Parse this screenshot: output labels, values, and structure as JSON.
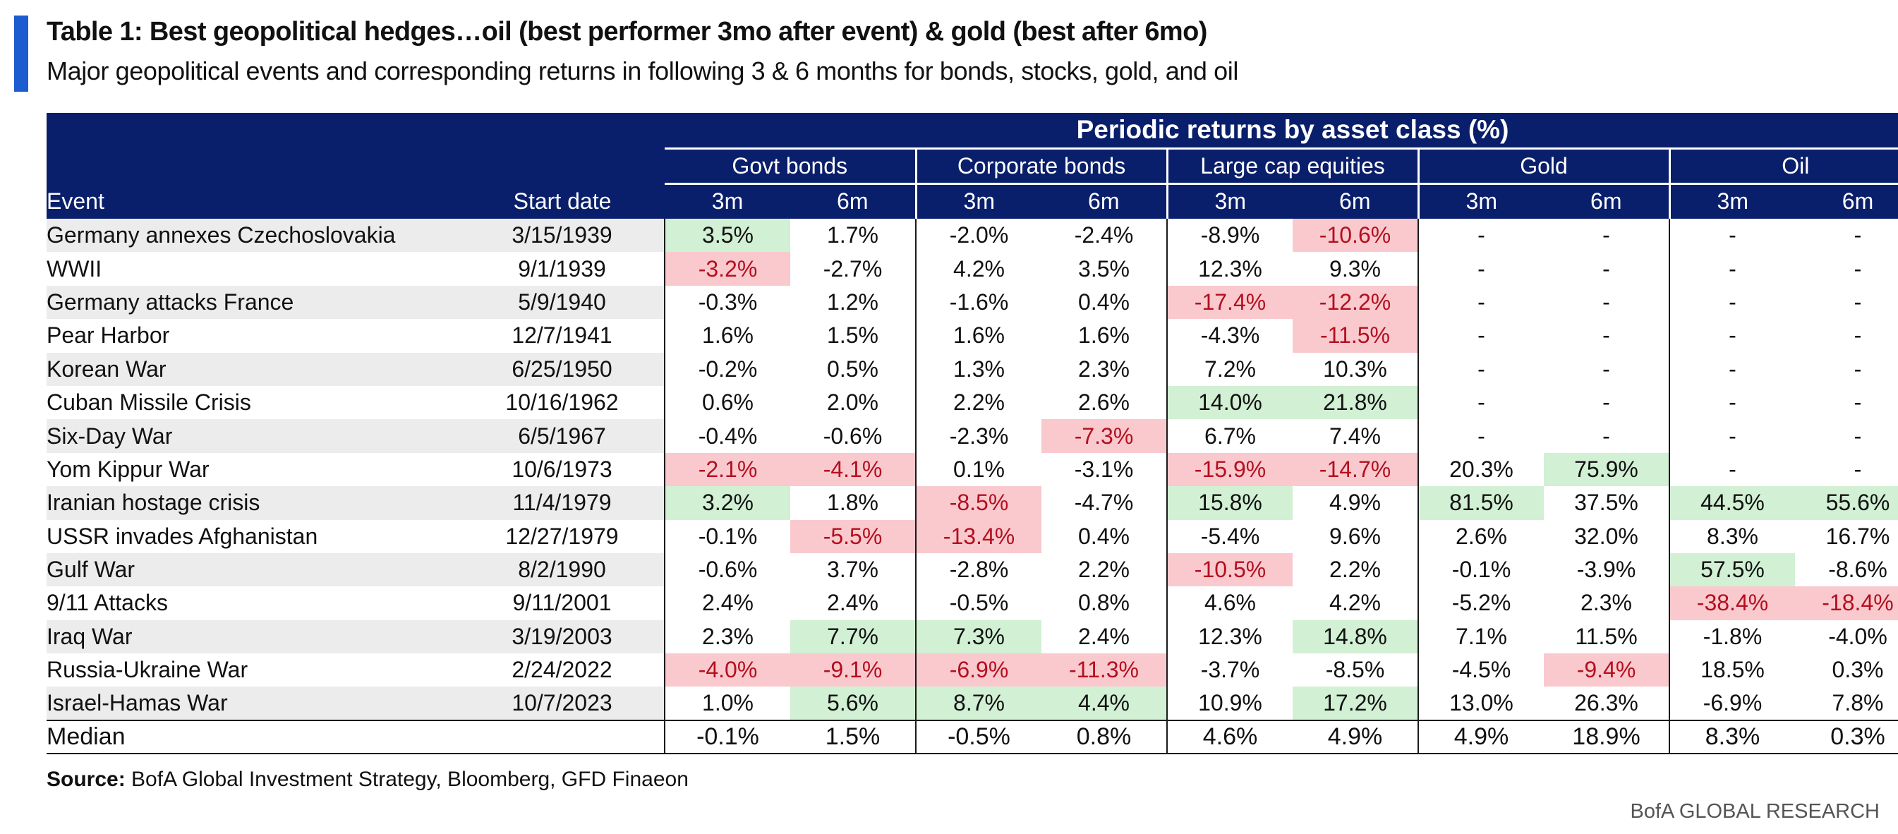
{
  "title": "Table 1: Best geopolitical hedges…oil (best performer 3mo after event) & gold (best after 6mo)",
  "subtitle": "Major geopolitical events and corresponding returns in following 3 & 6 months for bonds, stocks, gold, and oil",
  "source_label": "Source:",
  "source_text": "BofA Global Investment Strategy, Bloomberg, GFD Finaeon",
  "brand": "BofA GLOBAL RESEARCH",
  "colors": {
    "header_bg": "#0a1f6b",
    "accent": "#1d5bd1",
    "positive_bg": "#d2f0d4",
    "negative_bg": "#f9c9ce",
    "negative_text": "#b40f1e"
  },
  "chart_data": {
    "type": "table",
    "super_header": "Periodic returns by asset class (%)",
    "event_header": "Event",
    "date_header": "Start date",
    "groups": [
      "Govt bonds",
      "Corporate bonds",
      "Large cap equities",
      "Gold",
      "Oil"
    ],
    "periods": [
      "3m",
      "6m"
    ],
    "rows": [
      {
        "event": "Germany annexes Czechoslovakia",
        "date": "3/15/1939",
        "values": [
          "3.5%",
          "1.7%",
          "-2.0%",
          "-2.4%",
          "-8.9%",
          "-10.6%",
          "-",
          "-",
          "-",
          "-"
        ],
        "hl": [
          "pos",
          "",
          "",
          "",
          "",
          "neg",
          "",
          "",
          "",
          ""
        ]
      },
      {
        "event": "WWII",
        "date": "9/1/1939",
        "values": [
          "-3.2%",
          "-2.7%",
          "4.2%",
          "3.5%",
          "12.3%",
          "9.3%",
          "-",
          "-",
          "-",
          "-"
        ],
        "hl": [
          "neg",
          "",
          "",
          "",
          "",
          "",
          "",
          "",
          "",
          ""
        ]
      },
      {
        "event": "Germany attacks France",
        "date": "5/9/1940",
        "values": [
          "-0.3%",
          "1.2%",
          "-1.6%",
          "0.4%",
          "-17.4%",
          "-12.2%",
          "-",
          "-",
          "-",
          "-"
        ],
        "hl": [
          "",
          "",
          "",
          "",
          "neg",
          "neg",
          "",
          "",
          "",
          ""
        ]
      },
      {
        "event": "Pear Harbor",
        "date": "12/7/1941",
        "values": [
          "1.6%",
          "1.5%",
          "1.6%",
          "1.6%",
          "-4.3%",
          "-11.5%",
          "-",
          "-",
          "-",
          "-"
        ],
        "hl": [
          "",
          "",
          "",
          "",
          "",
          "neg",
          "",
          "",
          "",
          ""
        ]
      },
      {
        "event": "Korean War",
        "date": "6/25/1950",
        "values": [
          "-0.2%",
          "0.5%",
          "1.3%",
          "2.3%",
          "7.2%",
          "10.3%",
          "-",
          "-",
          "-",
          "-"
        ],
        "hl": [
          "",
          "",
          "",
          "",
          "",
          "",
          "",
          "",
          "",
          ""
        ]
      },
      {
        "event": "Cuban Missile Crisis",
        "date": "10/16/1962",
        "values": [
          "0.6%",
          "2.0%",
          "2.2%",
          "2.6%",
          "14.0%",
          "21.8%",
          "-",
          "-",
          "-",
          "-"
        ],
        "hl": [
          "",
          "",
          "",
          "",
          "pos",
          "pos",
          "",
          "",
          "",
          ""
        ]
      },
      {
        "event": "Six-Day War",
        "date": "6/5/1967",
        "values": [
          "-0.4%",
          "-0.6%",
          "-2.3%",
          "-7.3%",
          "6.7%",
          "7.4%",
          "-",
          "-",
          "-",
          "-"
        ],
        "hl": [
          "",
          "",
          "",
          "neg",
          "",
          "",
          "",
          "",
          "",
          ""
        ]
      },
      {
        "event": "Yom Kippur War",
        "date": "10/6/1973",
        "values": [
          "-2.1%",
          "-4.1%",
          "0.1%",
          "-3.1%",
          "-15.9%",
          "-14.7%",
          "20.3%",
          "75.9%",
          "-",
          "-"
        ],
        "hl": [
          "neg",
          "neg",
          "",
          "",
          "neg",
          "neg",
          "",
          "pos",
          "",
          ""
        ]
      },
      {
        "event": "Iranian hostage crisis",
        "date": "11/4/1979",
        "values": [
          "3.2%",
          "1.8%",
          "-8.5%",
          "-4.7%",
          "15.8%",
          "4.9%",
          "81.5%",
          "37.5%",
          "44.5%",
          "55.6%"
        ],
        "hl": [
          "pos",
          "",
          "neg",
          "",
          "pos",
          "",
          "pos",
          "",
          "pos",
          "pos"
        ]
      },
      {
        "event": "USSR invades Afghanistan",
        "date": "12/27/1979",
        "values": [
          "-0.1%",
          "-5.5%",
          "-13.4%",
          "0.4%",
          "-5.4%",
          "9.6%",
          "2.6%",
          "32.0%",
          "8.3%",
          "16.7%"
        ],
        "hl": [
          "",
          "neg",
          "neg",
          "",
          "",
          "",
          "",
          "",
          "",
          ""
        ]
      },
      {
        "event": "Gulf War",
        "date": "8/2/1990",
        "values": [
          "-0.6%",
          "3.7%",
          "-2.8%",
          "2.2%",
          "-10.5%",
          "2.2%",
          "-0.1%",
          "-3.9%",
          "57.5%",
          "-8.6%"
        ],
        "hl": [
          "",
          "",
          "",
          "",
          "neg",
          "",
          "",
          "",
          "pos",
          ""
        ]
      },
      {
        "event": "9/11 Attacks",
        "date": "9/11/2001",
        "values": [
          "2.4%",
          "2.4%",
          "-0.5%",
          "0.8%",
          "4.6%",
          "4.2%",
          "-5.2%",
          "2.3%",
          "-38.4%",
          "-18.4%"
        ],
        "hl": [
          "",
          "",
          "",
          "",
          "",
          "",
          "",
          "",
          "neg",
          "neg"
        ]
      },
      {
        "event": "Iraq War",
        "date": "3/19/2003",
        "values": [
          "2.3%",
          "7.7%",
          "7.3%",
          "2.4%",
          "12.3%",
          "14.8%",
          "7.1%",
          "11.5%",
          "-1.8%",
          "-4.0%"
        ],
        "hl": [
          "",
          "pos",
          "pos",
          "",
          "",
          "pos",
          "",
          "",
          "",
          ""
        ]
      },
      {
        "event": "Russia-Ukraine War",
        "date": "2/24/2022",
        "values": [
          "-4.0%",
          "-9.1%",
          "-6.9%",
          "-11.3%",
          "-3.7%",
          "-8.5%",
          "-4.5%",
          "-9.4%",
          "18.5%",
          "0.3%"
        ],
        "hl": [
          "neg",
          "neg",
          "neg",
          "neg",
          "",
          "",
          "",
          "neg",
          "",
          ""
        ]
      },
      {
        "event": "Israel-Hamas War",
        "date": "10/7/2023",
        "values": [
          "1.0%",
          "5.6%",
          "8.7%",
          "4.4%",
          "10.9%",
          "17.2%",
          "13.0%",
          "26.3%",
          "-6.9%",
          "7.8%"
        ],
        "hl": [
          "",
          "pos",
          "pos",
          "pos",
          "",
          "pos",
          "",
          "",
          "",
          ""
        ]
      }
    ],
    "median": {
      "label": "Median",
      "values": [
        "-0.1%",
        "1.5%",
        "-0.5%",
        "0.8%",
        "4.6%",
        "4.9%",
        "4.9%",
        "18.9%",
        "8.3%",
        "0.3%"
      ]
    }
  }
}
